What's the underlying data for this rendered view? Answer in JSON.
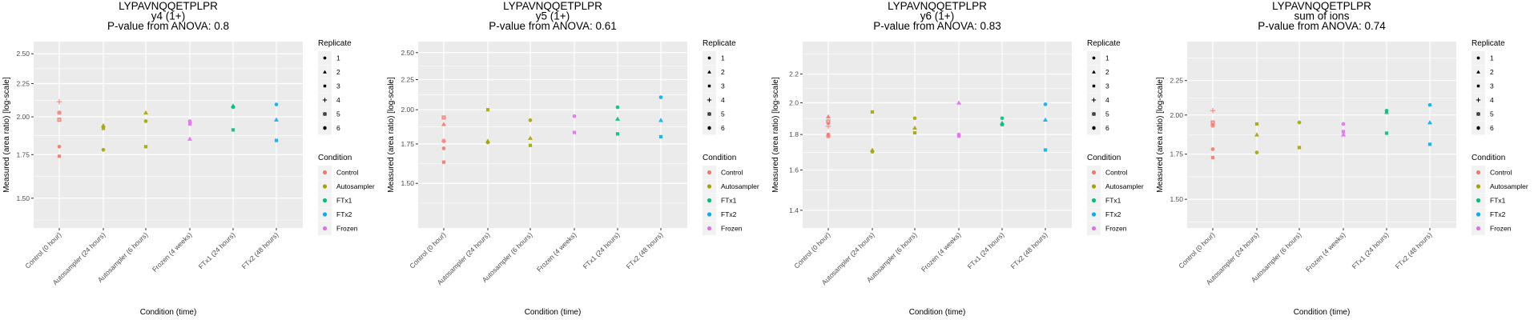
{
  "figure": {
    "peptide": "LYPAVNQQETPLPR"
  },
  "legend": {
    "replicate_title": "Replicate",
    "replicates": [
      {
        "label": "1",
        "shape": "circle"
      },
      {
        "label": "2",
        "shape": "triangle"
      },
      {
        "label": "3",
        "shape": "square"
      },
      {
        "label": "4",
        "shape": "plus"
      },
      {
        "label": "5",
        "shape": "boxed-x"
      },
      {
        "label": "6",
        "shape": "asterisk"
      }
    ],
    "condition_title": "Condition",
    "conditions": [
      {
        "label": "Control",
        "color": "#F8766D"
      },
      {
        "label": "Autosampler",
        "color": "#A3A500"
      },
      {
        "label": "FTx1",
        "color": "#00BF7D"
      },
      {
        "label": "FTx2",
        "color": "#00B0F6"
      },
      {
        "label": "Frozen",
        "color": "#E76BF3"
      }
    ]
  },
  "chart_data": [
    {
      "type": "scatter",
      "title": [
        "LYPAVNQQETPLPR",
        "y4 (1+)",
        "P-value from ANOVA: 0.8"
      ],
      "xlabel": "Condition (time)",
      "ylabel": "Measured (area ratio) [log-scale]",
      "yscale": "log",
      "ylim": [
        1.35,
        2.61
      ],
      "yticks": [
        1.5,
        1.75,
        2.0,
        2.25,
        2.5
      ],
      "ytick_labels": [
        "1.50",
        "1.75",
        "2.00",
        "2.25",
        "2.50"
      ],
      "grid": true,
      "legend_position": "right",
      "categories": [
        "Control (0 hour)",
        "Autosampler (24 hours)",
        "Autosampler (6 hours)",
        "Frozen (4 weeks)",
        "FTx1 (24 hours)",
        "FTx2 (48 hours)"
      ],
      "points": [
        {
          "category": 0,
          "condition": "Control",
          "replicate": "1",
          "y": 1.8
        },
        {
          "category": 0,
          "condition": "Control",
          "replicate": "3",
          "y": 1.74
        },
        {
          "category": 0,
          "condition": "Control",
          "replicate": "4",
          "y": 2.11
        },
        {
          "category": 0,
          "condition": "Control",
          "replicate": "5",
          "y": 1.98
        },
        {
          "category": 0,
          "condition": "Control",
          "replicate": "6",
          "y": 2.03
        },
        {
          "category": 1,
          "condition": "Autosampler",
          "replicate": "1",
          "y": 1.78
        },
        {
          "category": 1,
          "condition": "Autosampler",
          "replicate": "2",
          "y": 1.94
        },
        {
          "category": 1,
          "condition": "Autosampler",
          "replicate": "3",
          "y": 1.92
        },
        {
          "category": 2,
          "condition": "Autosampler",
          "replicate": "1",
          "y": 1.97
        },
        {
          "category": 2,
          "condition": "Autosampler",
          "replicate": "2",
          "y": 2.03
        },
        {
          "category": 2,
          "condition": "Autosampler",
          "replicate": "3",
          "y": 1.8
        },
        {
          "category": 3,
          "condition": "Frozen",
          "replicate": "1",
          "y": 1.97
        },
        {
          "category": 3,
          "condition": "Frozen",
          "replicate": "3",
          "y": 1.95
        },
        {
          "category": 3,
          "condition": "Frozen",
          "replicate": "2",
          "y": 1.85
        },
        {
          "category": 4,
          "condition": "FTx1",
          "replicate": "1",
          "y": 2.07
        },
        {
          "category": 4,
          "condition": "FTx1",
          "replicate": "2",
          "y": 2.08
        },
        {
          "category": 4,
          "condition": "FTx1",
          "replicate": "3",
          "y": 1.91
        },
        {
          "category": 5,
          "condition": "FTx2",
          "replicate": "1",
          "y": 2.09
        },
        {
          "category": 5,
          "condition": "FTx2",
          "replicate": "2",
          "y": 1.98
        },
        {
          "category": 5,
          "condition": "FTx2",
          "replicate": "3",
          "y": 1.84
        }
      ]
    },
    {
      "type": "scatter",
      "title": [
        "LYPAVNQQETPLPR",
        "y5 (1+)",
        "P-value from ANOVA: 0.61"
      ],
      "xlabel": "Condition (time)",
      "ylabel": "Measured (area ratio) [log-scale]",
      "yscale": "log",
      "ylim": [
        1.26,
        2.61
      ],
      "yticks": [
        1.5,
        1.75,
        2.0,
        2.25,
        2.5
      ],
      "ytick_labels": [
        "1.50",
        "1.75",
        "2.00",
        "2.25",
        "2.50"
      ],
      "grid": true,
      "legend_position": "right",
      "categories": [
        "Control (0 hour)",
        "Autosampler (24 hours)",
        "Autosampler (6 hours)",
        "Frozen (4 weeks)",
        "FTx1 (24 hours)",
        "FTx2 (48 hours)"
      ],
      "points": [
        {
          "category": 0,
          "condition": "Control",
          "replicate": "1",
          "y": 1.72
        },
        {
          "category": 0,
          "condition": "Control",
          "replicate": "2",
          "y": 1.89
        },
        {
          "category": 0,
          "condition": "Control",
          "replicate": "3",
          "y": 1.63
        },
        {
          "category": 0,
          "condition": "Control",
          "replicate": "5",
          "y": 1.94
        },
        {
          "category": 0,
          "condition": "Control",
          "replicate": "6",
          "y": 1.77
        },
        {
          "category": 1,
          "condition": "Autosampler",
          "replicate": "1",
          "y": 1.76
        },
        {
          "category": 1,
          "condition": "Autosampler",
          "replicate": "2",
          "y": 1.77
        },
        {
          "category": 1,
          "condition": "Autosampler",
          "replicate": "3",
          "y": 2.0
        },
        {
          "category": 2,
          "condition": "Autosampler",
          "replicate": "1",
          "y": 1.92
        },
        {
          "category": 2,
          "condition": "Autosampler",
          "replicate": "2",
          "y": 1.79
        },
        {
          "category": 2,
          "condition": "Autosampler",
          "replicate": "3",
          "y": 1.74
        },
        {
          "category": 3,
          "condition": "Frozen",
          "replicate": "1",
          "y": 1.95
        },
        {
          "category": 3,
          "condition": "Frozen",
          "replicate": "3",
          "y": 1.83
        },
        {
          "category": 4,
          "condition": "FTx1",
          "replicate": "1",
          "y": 2.02
        },
        {
          "category": 4,
          "condition": "FTx1",
          "replicate": "2",
          "y": 1.93
        },
        {
          "category": 4,
          "condition": "FTx1",
          "replicate": "3",
          "y": 1.82
        },
        {
          "category": 5,
          "condition": "FTx2",
          "replicate": "1",
          "y": 2.1
        },
        {
          "category": 5,
          "condition": "FTx2",
          "replicate": "2",
          "y": 1.92
        },
        {
          "category": 5,
          "condition": "FTx2",
          "replicate": "3",
          "y": 1.8
        }
      ]
    },
    {
      "type": "scatter",
      "title": [
        "LYPAVNQQETPLPR",
        "y6 (1+)",
        "P-value from ANOVA: 0.83"
      ],
      "xlabel": "Condition (time)",
      "ylabel": "Measured (area ratio) [log-scale]",
      "yscale": "log",
      "ylim": [
        1.32,
        2.45
      ],
      "yticks": [
        1.4,
        1.6,
        1.8,
        2.0,
        2.2
      ],
      "ytick_labels": [
        "1.4",
        "1.6",
        "1.8",
        "2.0",
        "2.2"
      ],
      "grid": true,
      "legend_position": "right",
      "categories": [
        "Control (0 hour)",
        "Autosampler (24 hours)",
        "Autosampler (6 hours)",
        "Frozen (4 weeks)",
        "FTx1 (24 hours)",
        "FTx2 (48 hours)"
      ],
      "points": [
        {
          "category": 0,
          "condition": "Control",
          "replicate": "1",
          "y": 1.8
        },
        {
          "category": 0,
          "condition": "Control",
          "replicate": "2",
          "y": 1.91
        },
        {
          "category": 0,
          "condition": "Control",
          "replicate": "3",
          "y": 1.87
        },
        {
          "category": 0,
          "condition": "Control",
          "replicate": "4",
          "y": 1.85
        },
        {
          "category": 0,
          "condition": "Control",
          "replicate": "5",
          "y": 1.88
        },
        {
          "category": 0,
          "condition": "Control",
          "replicate": "6",
          "y": 1.79
        },
        {
          "category": 1,
          "condition": "Autosampler",
          "replicate": "1",
          "y": 1.7
        },
        {
          "category": 1,
          "condition": "Autosampler",
          "replicate": "2",
          "y": 1.71
        },
        {
          "category": 1,
          "condition": "Autosampler",
          "replicate": "3",
          "y": 1.94
        },
        {
          "category": 2,
          "condition": "Autosampler",
          "replicate": "1",
          "y": 1.9
        },
        {
          "category": 2,
          "condition": "Autosampler",
          "replicate": "2",
          "y": 1.84
        },
        {
          "category": 2,
          "condition": "Autosampler",
          "replicate": "3",
          "y": 1.81
        },
        {
          "category": 3,
          "condition": "Frozen",
          "replicate": "1",
          "y": 1.8
        },
        {
          "category": 3,
          "condition": "Frozen",
          "replicate": "2",
          "y": 2.0
        },
        {
          "category": 3,
          "condition": "Frozen",
          "replicate": "3",
          "y": 1.79
        },
        {
          "category": 4,
          "condition": "FTx1",
          "replicate": "1",
          "y": 1.9
        },
        {
          "category": 4,
          "condition": "FTx1",
          "replicate": "2",
          "y": 1.87
        },
        {
          "category": 4,
          "condition": "FTx1",
          "replicate": "3",
          "y": 1.86
        },
        {
          "category": 5,
          "condition": "FTx2",
          "replicate": "1",
          "y": 1.99
        },
        {
          "category": 5,
          "condition": "FTx2",
          "replicate": "2",
          "y": 1.89
        },
        {
          "category": 5,
          "condition": "FTx2",
          "replicate": "3",
          "y": 1.71
        }
      ]
    },
    {
      "type": "scatter",
      "title": [
        "LYPAVNQQETPLPR",
        "sum of ions",
        "P-value from ANOVA: 0.74"
      ],
      "xlabel": "Condition (time)",
      "ylabel": "Measured (area ratio) [log-scale]",
      "yscale": "log",
      "ylim": [
        1.36,
        2.57
      ],
      "yticks": [
        1.5,
        1.75,
        2.0,
        2.25
      ],
      "ytick_labels": [
        "1.50",
        "1.75",
        "2.00",
        "2.25"
      ],
      "grid": true,
      "legend_position": "right",
      "categories": [
        "Control (0 hour)",
        "Autosampler (24 hours)",
        "Autosampler (6 hours)",
        "Frozen (4 weeks)",
        "FTx1 (24 hours)",
        "FTx2 (48 hours)"
      ],
      "points": [
        {
          "category": 0,
          "condition": "Control",
          "replicate": "1",
          "y": 1.78
        },
        {
          "category": 0,
          "condition": "Control",
          "replicate": "3",
          "y": 1.73
        },
        {
          "category": 0,
          "condition": "Control",
          "replicate": "4",
          "y": 2.03
        },
        {
          "category": 0,
          "condition": "Control",
          "replicate": "5",
          "y": 1.95
        },
        {
          "category": 0,
          "condition": "Control",
          "replicate": "6",
          "y": 1.93
        },
        {
          "category": 1,
          "condition": "Autosampler",
          "replicate": "1",
          "y": 1.76
        },
        {
          "category": 1,
          "condition": "Autosampler",
          "replicate": "2",
          "y": 1.87
        },
        {
          "category": 1,
          "condition": "Autosampler",
          "replicate": "3",
          "y": 1.94
        },
        {
          "category": 2,
          "condition": "Autosampler",
          "replicate": "1",
          "y": 1.95
        },
        {
          "category": 2,
          "condition": "Autosampler",
          "replicate": "3",
          "y": 1.79
        },
        {
          "category": 3,
          "condition": "Frozen",
          "replicate": "1",
          "y": 1.94
        },
        {
          "category": 3,
          "condition": "Frozen",
          "replicate": "2",
          "y": 1.87
        },
        {
          "category": 3,
          "condition": "Frozen",
          "replicate": "3",
          "y": 1.89
        },
        {
          "category": 4,
          "condition": "FTx1",
          "replicate": "1",
          "y": 2.03
        },
        {
          "category": 4,
          "condition": "FTx1",
          "replicate": "2",
          "y": 2.02
        },
        {
          "category": 4,
          "condition": "FTx1",
          "replicate": "3",
          "y": 1.88
        },
        {
          "category": 5,
          "condition": "FTx2",
          "replicate": "1",
          "y": 2.07
        },
        {
          "category": 5,
          "condition": "FTx2",
          "replicate": "2",
          "y": 1.95
        },
        {
          "category": 5,
          "condition": "FTx2",
          "replicate": "3",
          "y": 1.81
        }
      ]
    }
  ]
}
